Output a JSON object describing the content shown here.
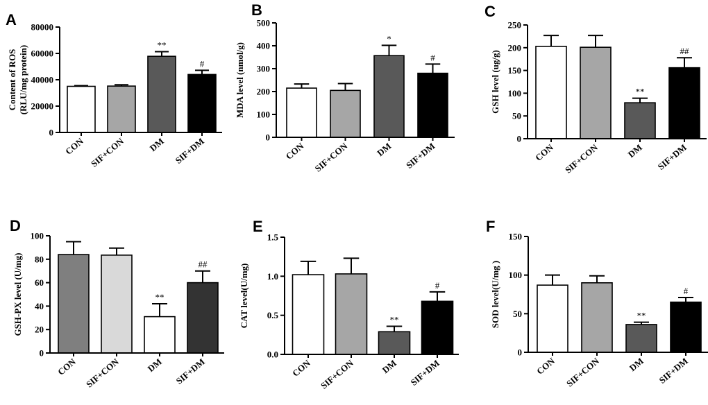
{
  "chart_data": [
    {
      "panel": "A",
      "type": "bar",
      "categories": [
        "CON",
        "SIF+CON",
        "DM",
        "SIF+DM"
      ],
      "values": [
        35000,
        35200,
        57800,
        44000
      ],
      "errors": [
        500,
        1000,
        3500,
        3200
      ],
      "colors": [
        "#ffffff",
        "#a6a6a6",
        "#595959",
        "#000000"
      ],
      "annotations": [
        "",
        "",
        "**",
        "#"
      ],
      "ylabel": [
        "Content of ROS",
        "(RLU/mg protein)"
      ],
      "ylim": [
        0,
        80000
      ],
      "yticks": [
        "0",
        "20000",
        "40000",
        "60000",
        "80000"
      ]
    },
    {
      "panel": "B",
      "type": "bar",
      "categories": [
        "CON",
        "SIF+CON",
        "DM",
        "SIF+DM"
      ],
      "values": [
        215,
        205,
        357,
        280
      ],
      "errors": [
        18,
        30,
        45,
        40
      ],
      "colors": [
        "#ffffff",
        "#a6a6a6",
        "#595959",
        "#000000"
      ],
      "annotations": [
        "",
        "",
        "*",
        "#"
      ],
      "ylabel": [
        "MDA level (nmol/g)"
      ],
      "ylim": [
        0,
        500
      ],
      "yticks": [
        "0",
        "100",
        "200",
        "300",
        "400",
        "500"
      ]
    },
    {
      "panel": "C",
      "type": "bar",
      "categories": [
        "CON",
        "SIF+CON",
        "DM",
        "SIF+DM"
      ],
      "values": [
        203,
        201,
        79,
        156
      ],
      "errors": [
        24,
        26,
        10,
        22
      ],
      "colors": [
        "#ffffff",
        "#a6a6a6",
        "#595959",
        "#000000"
      ],
      "annotations": [
        "",
        "",
        "**",
        "##"
      ],
      "ylabel": [
        "GSH level (ug/g)"
      ],
      "ylim": [
        0,
        250
      ],
      "yticks": [
        "0",
        "50",
        "100",
        "150",
        "200",
        "250"
      ]
    },
    {
      "panel": "D",
      "type": "bar",
      "categories": [
        "CON",
        "SIF+CON",
        "DM",
        "SIF+DM"
      ],
      "values": [
        84,
        83.5,
        31,
        60
      ],
      "errors": [
        11,
        6,
        11,
        10
      ],
      "colors": [
        "#7f7f7f",
        "#d9d9d9",
        "#ffffff",
        "#333333"
      ],
      "annotations": [
        "",
        "",
        "**",
        "##"
      ],
      "ylabel": [
        "GSH-PX level (U/mg)"
      ],
      "ylim": [
        0,
        100
      ],
      "yticks": [
        "0",
        "20",
        "40",
        "60",
        "80",
        "100"
      ]
    },
    {
      "panel": "E",
      "type": "bar",
      "categories": [
        "CON",
        "SIF+CON",
        "DM",
        "SIF+DM"
      ],
      "values": [
        1.02,
        1.03,
        0.29,
        0.68
      ],
      "errors": [
        0.17,
        0.2,
        0.07,
        0.12
      ],
      "colors": [
        "#ffffff",
        "#a6a6a6",
        "#595959",
        "#000000"
      ],
      "annotations": [
        "",
        "",
        "**",
        "#"
      ],
      "ylabel": [
        "CAT level(U/mg)"
      ],
      "ylim": [
        0,
        1.5
      ],
      "yticks": [
        "0.0",
        "0.5",
        "1.0",
        "1.5"
      ]
    },
    {
      "panel": "F",
      "type": "bar",
      "categories": [
        "CON",
        "SIF+CON",
        "DM",
        "SIF+DM"
      ],
      "values": [
        87,
        90,
        36,
        65
      ],
      "errors": [
        13,
        9,
        3,
        6
      ],
      "colors": [
        "#ffffff",
        "#a6a6a6",
        "#595959",
        "#000000"
      ],
      "annotations": [
        "",
        "",
        "**",
        "#"
      ],
      "ylabel": [
        "SOD level(U/mg )"
      ],
      "ylim": [
        0,
        150
      ],
      "yticks": [
        "0",
        "50",
        "100",
        "150"
      ]
    }
  ]
}
